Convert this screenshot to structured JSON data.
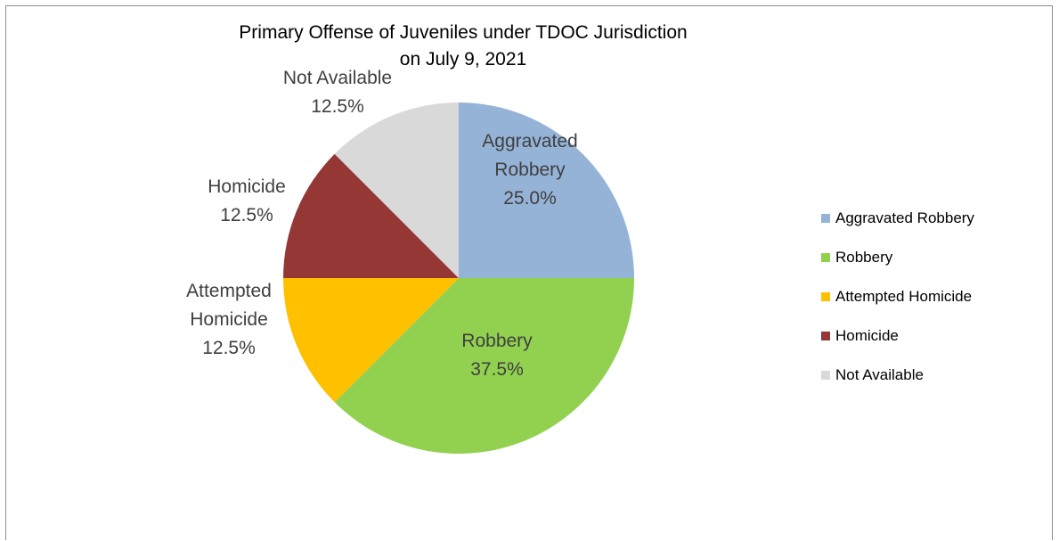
{
  "chart_data": {
    "type": "pie",
    "title_lines": [
      "Primary Offense of Juveniles under TDOC Jurisdiction",
      "on July 9, 2021"
    ],
    "slices": [
      {
        "label": "Aggravated Robbery",
        "label_lines": [
          "Aggravated",
          "Robbery"
        ],
        "value": 25.0,
        "value_label": "25.0%",
        "color": "#95b3d7"
      },
      {
        "label": "Robbery",
        "label_lines": [
          "Robbery"
        ],
        "value": 37.5,
        "value_label": "37.5%",
        "color": "#92d050"
      },
      {
        "label": "Attempted Homicide",
        "label_lines": [
          "Attempted",
          "Homicide"
        ],
        "value": 12.5,
        "value_label": "12.5%",
        "color": "#ffc000"
      },
      {
        "label": "Homicide",
        "label_lines": [
          "Homicide"
        ],
        "value": 12.5,
        "value_label": "12.5%",
        "color": "#953735"
      },
      {
        "label": "Not Available",
        "label_lines": [
          "Not Available"
        ],
        "value": 12.5,
        "value_label": "12.5%",
        "color": "#d9d9d9"
      }
    ],
    "legend_position": "right",
    "data_label_color": "#404040"
  }
}
